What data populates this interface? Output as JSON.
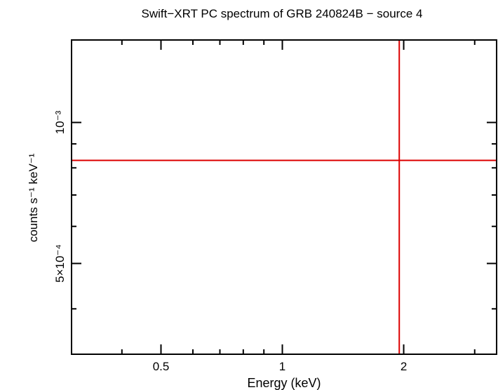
{
  "chart_data": {
    "type": "scatter",
    "title": "Swift−XRT PC spectrum of GRB 240824B − source 4",
    "xlabel": "Energy (keV)",
    "ylabel": "counts s⁻¹ keV⁻¹",
    "x_scale": "log",
    "y_scale": "log",
    "xlim": [
      0.3,
      3.4
    ],
    "ylim": [
      0.00032,
      0.0015
    ],
    "x_ticks": [
      {
        "value": 0.5,
        "label": "0.5"
      },
      {
        "value": 1,
        "label": "1"
      },
      {
        "value": 2,
        "label": "2"
      }
    ],
    "y_ticks": [
      {
        "value": 0.001,
        "label": "10⁻³"
      },
      {
        "value": 0.0005,
        "label": "5×10⁻⁴"
      }
    ],
    "grid": false,
    "series": [
      {
        "color": "#dd0000",
        "points": [
          {
            "x": 1.95,
            "y": 0.00083,
            "x_err": [
              0.3,
              3.4
            ]
          }
        ]
      }
    ]
  }
}
